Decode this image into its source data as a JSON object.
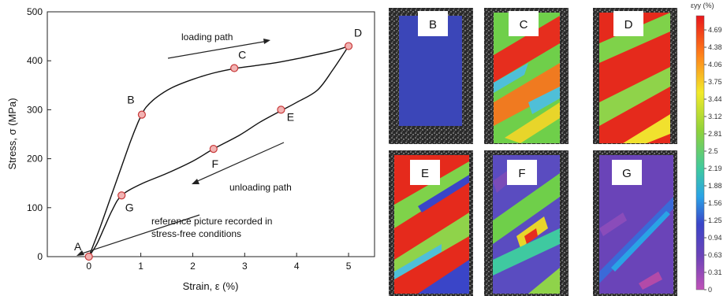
{
  "chart_data": {
    "type": "line",
    "xlabel": "Strain, ε (%)",
    "ylabel": "Stress, σ (MPa)",
    "xlim": [
      -0.8,
      5.5
    ],
    "ylim": [
      0,
      500
    ],
    "xticks": [
      "0",
      "1",
      "2",
      "3",
      "4",
      "5"
    ],
    "yticks": [
      "0",
      "100",
      "200",
      "300",
      "400",
      "500"
    ],
    "loading_curve": {
      "x": [
        0,
        0.2,
        0.4,
        0.6,
        0.8,
        0.95,
        1.02,
        1.1,
        1.3,
        1.6,
        2.0,
        2.4,
        2.8,
        3.2,
        3.6,
        4.0,
        4.4,
        4.8,
        5.0
      ],
      "y": [
        0,
        55,
        115,
        175,
        235,
        275,
        290,
        305,
        325,
        345,
        362,
        375,
        384,
        390,
        396,
        404,
        413,
        423,
        430
      ]
    },
    "unloading_curve": {
      "x": [
        5.0,
        4.7,
        4.4,
        4.0,
        3.7,
        3.3,
        2.9,
        2.4,
        2.0,
        1.5,
        1.0,
        0.63,
        0.45,
        0.3,
        0.15,
        0
      ],
      "y": [
        430,
        382,
        340,
        315,
        298,
        275,
        248,
        220,
        195,
        170,
        148,
        125,
        95,
        60,
        25,
        0
      ]
    },
    "points": [
      {
        "label": "A",
        "x": 0,
        "y": 0
      },
      {
        "label": "B",
        "x": 1.02,
        "y": 290
      },
      {
        "label": "C",
        "x": 2.8,
        "y": 385
      },
      {
        "label": "D",
        "x": 5.0,
        "y": 430
      },
      {
        "label": "E",
        "x": 3.7,
        "y": 300
      },
      {
        "label": "F",
        "x": 2.4,
        "y": 220
      },
      {
        "label": "G",
        "x": 0.63,
        "y": 125
      }
    ],
    "annotations": {
      "loading": "loading path",
      "unloading": "unloading path",
      "reference_line1": "reference picture recorded in",
      "reference_line2": "stress-free conditions"
    },
    "colorbar": {
      "title": "εyy (%)",
      "ticks": [
        "4.69",
        "4.38",
        "4.06",
        "3.75",
        "3.44",
        "3.12",
        "2.81",
        "2.5",
        "2.19",
        "1.88",
        "1.56",
        "1.25",
        "0.94",
        "0.63",
        "0.31",
        "0"
      ]
    },
    "panels": [
      "B",
      "C",
      "D",
      "E",
      "F",
      "G"
    ]
  }
}
